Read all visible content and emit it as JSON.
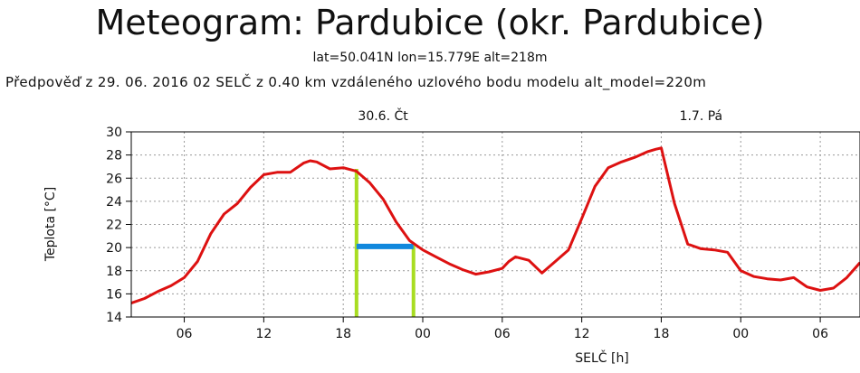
{
  "title": "Meteogram: Pardubice (okr. Pardubice)",
  "subtitle": "lat=50.041N lon=15.779E alt=218m",
  "forecast_note": "Předpověď z 29. 06. 2016 02 SELČ z 0.40 km vzdáleného uzlového bodu modelu alt_model=220m",
  "chart_data": {
    "type": "line",
    "xlabel": "SELČ [h]",
    "ylabel": "Teplota [°C]",
    "ylim": [
      14,
      30
    ],
    "yticks": [
      14,
      16,
      18,
      20,
      22,
      24,
      26,
      28,
      30
    ],
    "xlim": [
      2,
      57
    ],
    "xticks": [
      {
        "x": 6,
        "label": "06"
      },
      {
        "x": 12,
        "label": "12"
      },
      {
        "x": 18,
        "label": "18"
      },
      {
        "x": 24,
        "label": "00"
      },
      {
        "x": 30,
        "label": "06"
      },
      {
        "x": 36,
        "label": "12"
      },
      {
        "x": 42,
        "label": "18"
      },
      {
        "x": 48,
        "label": "00"
      },
      {
        "x": 54,
        "label": "06"
      }
    ],
    "day_labels": [
      {
        "x": 21,
        "label": "30.6. Čt"
      },
      {
        "x": 45,
        "label": "1.7. Pá"
      }
    ],
    "grid": true,
    "series": [
      {
        "color": "#dd1111",
        "x": [
          2,
          3,
          4,
          5,
          6,
          7,
          8,
          9,
          10,
          11,
          12,
          13,
          14,
          15,
          15.5,
          16,
          17,
          18,
          19,
          20,
          21,
          22,
          23,
          24,
          25,
          26,
          27,
          28,
          29,
          30,
          30.5,
          31,
          32,
          33,
          34,
          35,
          36,
          37,
          38,
          39,
          40,
          41,
          41.6,
          42,
          43,
          44,
          45,
          46,
          47,
          48,
          49,
          50,
          51,
          52,
          53,
          54,
          55,
          56,
          57
        ],
        "y": [
          15.2,
          15.6,
          16.2,
          16.7,
          17.4,
          18.8,
          21.2,
          22.9,
          23.8,
          25.2,
          26.3,
          26.5,
          26.5,
          27.3,
          27.5,
          27.4,
          26.8,
          26.9,
          26.6,
          25.6,
          24.2,
          22.2,
          20.6,
          19.8,
          19.2,
          18.6,
          18.1,
          17.7,
          17.9,
          18.2,
          18.8,
          19.2,
          18.9,
          17.8,
          18.8,
          19.8,
          22.5,
          25.3,
          26.9,
          27.4,
          27.8,
          28.3,
          28.5,
          28.6,
          23.8,
          20.3,
          19.9,
          19.8,
          19.6,
          18.0,
          17.5,
          17.3,
          17.2,
          17.4,
          16.6,
          16.3,
          16.5,
          17.4,
          18.7
        ]
      }
    ],
    "annotations": [
      {
        "type": "vline",
        "color": "#a8dd22",
        "x": 19,
        "y_from": 14,
        "y_to": 26.8
      },
      {
        "type": "vline",
        "color": "#a8dd22",
        "x": 23.3,
        "y_from": 14,
        "y_to": 20.2
      },
      {
        "type": "hline",
        "color": "#1188dd",
        "x_from": 19,
        "x_to": 23.3,
        "y": 20.1
      }
    ]
  }
}
